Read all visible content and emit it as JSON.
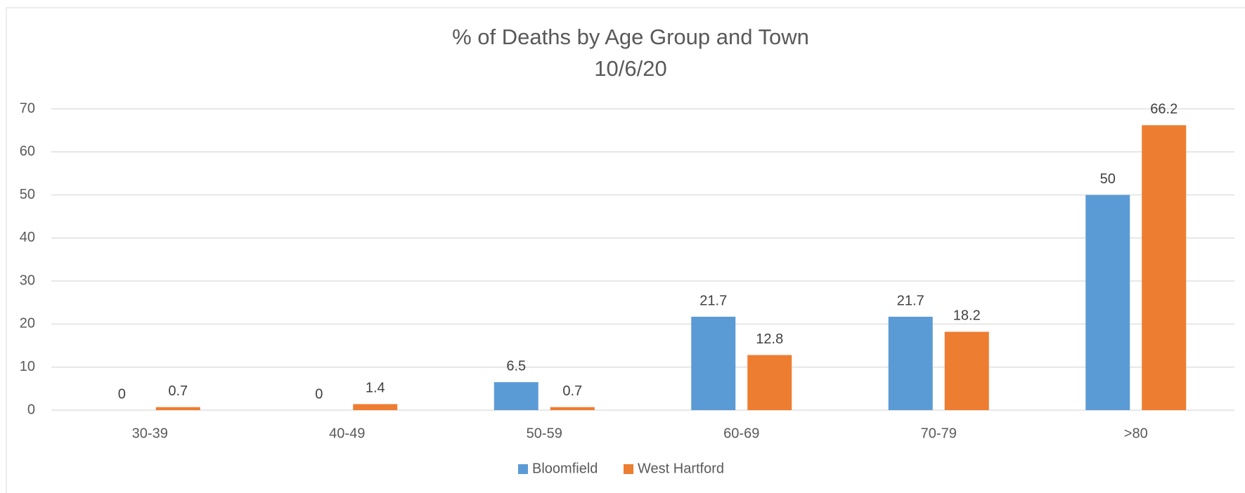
{
  "chart_data": {
    "type": "bar",
    "title": "% of Deaths by Age Group and Town",
    "subtitle": "10/6/20",
    "categories": [
      "30-39",
      "40-49",
      "50-59",
      "60-69",
      "70-79",
      ">80"
    ],
    "series": [
      {
        "name": "Bloomfield",
        "color": "#5b9bd5",
        "values": [
          0,
          0,
          6.5,
          21.7,
          21.7,
          50
        ]
      },
      {
        "name": "West Hartford",
        "color": "#ed7d31",
        "values": [
          0.7,
          1.4,
          0.7,
          12.8,
          18.2,
          66.2
        ]
      }
    ],
    "ylim": [
      0,
      70
    ],
    "yticks": [
      0,
      10,
      20,
      30,
      40,
      50,
      60,
      70
    ],
    "grid": true,
    "legend": "bottom"
  }
}
